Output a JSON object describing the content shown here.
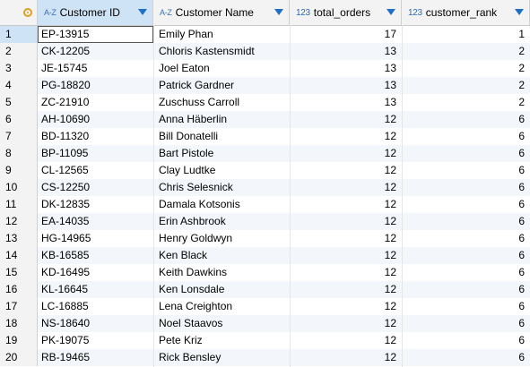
{
  "columns": {
    "customer_id": {
      "type_icon": "A-Z",
      "label": "Customer ID"
    },
    "customer_name": {
      "type_icon": "A-Z",
      "label": "Customer Name"
    },
    "total_orders": {
      "type_icon": "123",
      "label": "total_orders"
    },
    "customer_rank": {
      "type_icon": "123",
      "label": "customer_rank"
    }
  },
  "rows": [
    {
      "n": "1",
      "id": "EP-13915",
      "name": "Emily Phan",
      "orders": "17",
      "rank": "1"
    },
    {
      "n": "2",
      "id": "CK-12205",
      "name": "Chloris Kastensmidt",
      "orders": "13",
      "rank": "2"
    },
    {
      "n": "3",
      "id": "JE-15745",
      "name": "Joel Eaton",
      "orders": "13",
      "rank": "2"
    },
    {
      "n": "4",
      "id": "PG-18820",
      "name": "Patrick Gardner",
      "orders": "13",
      "rank": "2"
    },
    {
      "n": "5",
      "id": "ZC-21910",
      "name": "Zuschuss Carroll",
      "orders": "13",
      "rank": "2"
    },
    {
      "n": "6",
      "id": "AH-10690",
      "name": "Anna Häberlin",
      "orders": "12",
      "rank": "6"
    },
    {
      "n": "7",
      "id": "BD-11320",
      "name": "Bill Donatelli",
      "orders": "12",
      "rank": "6"
    },
    {
      "n": "8",
      "id": "BP-11095",
      "name": "Bart Pistole",
      "orders": "12",
      "rank": "6"
    },
    {
      "n": "9",
      "id": "CL-12565",
      "name": "Clay Ludtke",
      "orders": "12",
      "rank": "6"
    },
    {
      "n": "10",
      "id": "CS-12250",
      "name": "Chris Selesnick",
      "orders": "12",
      "rank": "6"
    },
    {
      "n": "11",
      "id": "DK-12835",
      "name": "Damala Kotsonis",
      "orders": "12",
      "rank": "6"
    },
    {
      "n": "12",
      "id": "EA-14035",
      "name": "Erin Ashbrook",
      "orders": "12",
      "rank": "6"
    },
    {
      "n": "13",
      "id": "HG-14965",
      "name": "Henry Goldwyn",
      "orders": "12",
      "rank": "6"
    },
    {
      "n": "14",
      "id": "KB-16585",
      "name": "Ken Black",
      "orders": "12",
      "rank": "6"
    },
    {
      "n": "15",
      "id": "KD-16495",
      "name": "Keith Dawkins",
      "orders": "12",
      "rank": "6"
    },
    {
      "n": "16",
      "id": "KL-16645",
      "name": "Ken Lonsdale",
      "orders": "12",
      "rank": "6"
    },
    {
      "n": "17",
      "id": "LC-16885",
      "name": "Lena Creighton",
      "orders": "12",
      "rank": "6"
    },
    {
      "n": "18",
      "id": "NS-18640",
      "name": "Noel Staavos",
      "orders": "12",
      "rank": "6"
    },
    {
      "n": "19",
      "id": "PK-19075",
      "name": "Pete Kriz",
      "orders": "12",
      "rank": "6"
    },
    {
      "n": "20",
      "id": "RB-19465",
      "name": "Rick Bensley",
      "orders": "12",
      "rank": "6"
    }
  ]
}
